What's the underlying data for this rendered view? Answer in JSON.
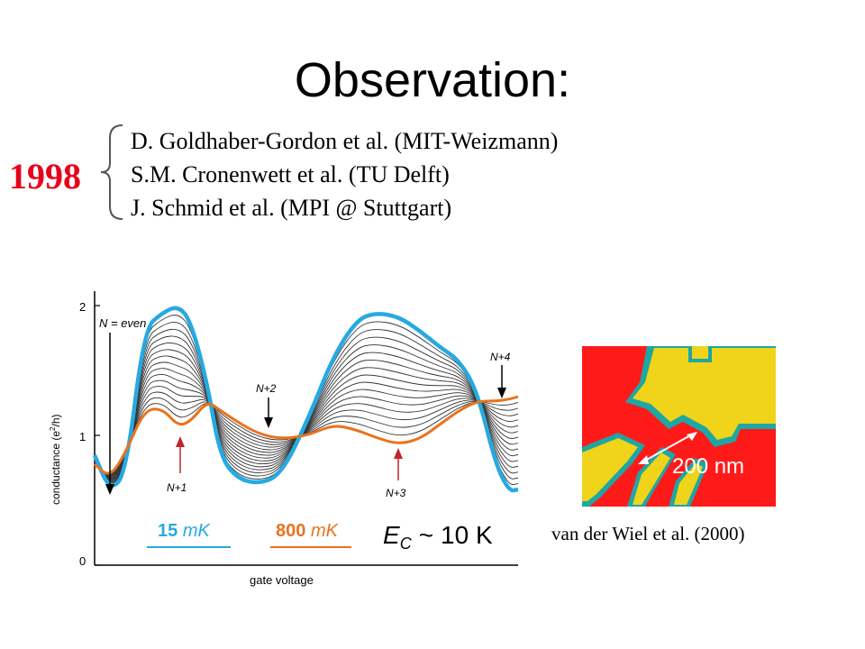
{
  "slide": {
    "title": "Observation:",
    "year": "1998",
    "references": [
      "D. Goldhaber-Gordon  et al. (MIT-Weizmann)",
      "S.M. Cronenwett  et al.  (TU Delft)",
      "J. Schmid  et al.  (MPI @ Stuttgart)"
    ]
  },
  "plot": {
    "ylabel": "conductance (e²/h)",
    "ylabel_base": "conductance (e",
    "ylabel_sup": "2",
    "ylabel_tail": "/h)",
    "xlabel": "gate voltage",
    "yticks": [
      "2",
      "1",
      "0"
    ],
    "annotations": {
      "n_even": "N = even",
      "n_plus_1": "N+1",
      "n_plus_2": "N+2",
      "n_plus_3": "N+3",
      "n_plus_4": "N+4"
    },
    "legend": {
      "low_value": "15",
      "low_unit": "mK",
      "high_value": "800",
      "high_unit": "mK"
    },
    "energy": {
      "symbol": "E",
      "subscript": "C",
      "relation": "~",
      "value": "10 K"
    },
    "colors": {
      "low_temp": "#27a9e1",
      "high_temp": "#e9731e",
      "traces": "#333333"
    }
  },
  "afm": {
    "scale_label": "200 nm",
    "colors": {
      "background": "#ff1a1a",
      "gate": "#f0d41a",
      "edge": "#20a6a3"
    }
  },
  "caption": "van der Wiel et al. (2000)"
}
